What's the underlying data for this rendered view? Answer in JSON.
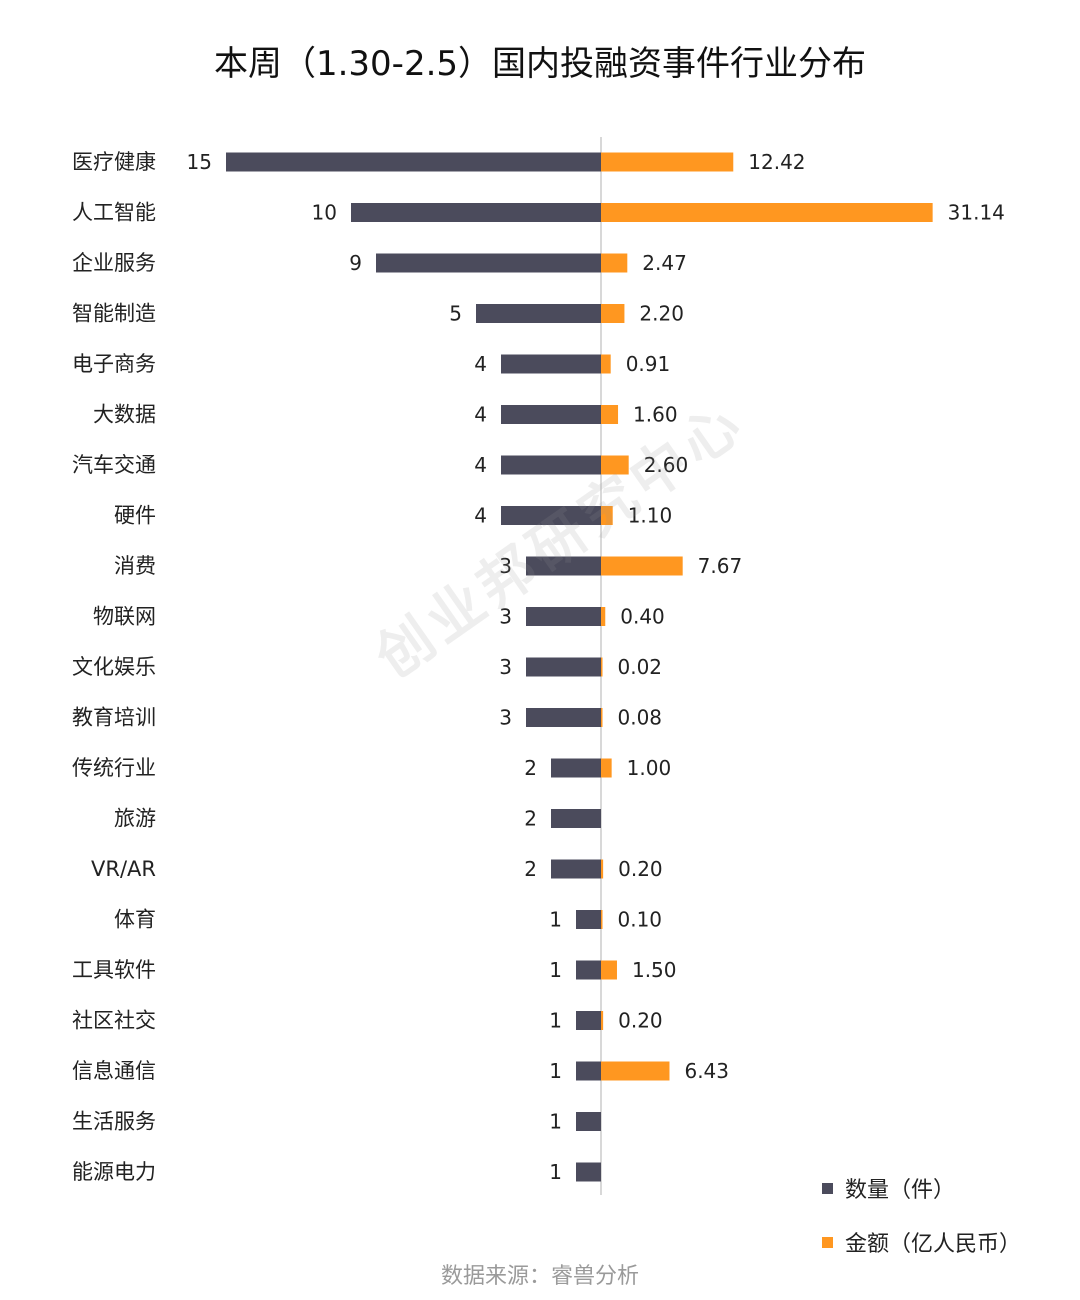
{
  "title": "本周（1.30-2.5）国内投融资事件行业分布",
  "source": "数据来源：睿兽分析",
  "watermark": "创业邦研究中心",
  "colors": {
    "count_bar": "#4b4b5c",
    "amount_bar": "#ff9720",
    "axis": "#cccccc"
  },
  "legend": {
    "count": "数量（件）",
    "amount": "金额（亿人民币）"
  },
  "chart_data": {
    "type": "bar",
    "orientation": "horizontal-diverging",
    "title": "本周（1.30-2.5）国内投融资事件行业分布",
    "categories": [
      "医疗健康",
      "人工智能",
      "企业服务",
      "智能制造",
      "电子商务",
      "大数据",
      "汽车交通",
      "硬件",
      "消费",
      "物联网",
      "文化娱乐",
      "教育培训",
      "传统行业",
      "旅游",
      "VR/AR",
      "体育",
      "工具软件",
      "社区社交",
      "信息通信",
      "生活服务",
      "能源电力"
    ],
    "series": [
      {
        "name": "数量（件）",
        "direction": "left",
        "values": [
          15,
          10,
          9,
          5,
          4,
          4,
          4,
          4,
          3,
          3,
          3,
          3,
          2,
          2,
          2,
          1,
          1,
          1,
          1,
          1,
          1
        ],
        "labels": [
          "15",
          "10",
          "9",
          "5",
          "4",
          "4",
          "4",
          "4",
          "3",
          "3",
          "3",
          "3",
          "2",
          "2",
          "2",
          "1",
          "1",
          "1",
          "1",
          "1",
          "1"
        ]
      },
      {
        "name": "金额（亿人民币）",
        "direction": "right",
        "values": [
          12.42,
          31.14,
          2.47,
          2.2,
          0.91,
          1.6,
          2.6,
          1.1,
          7.67,
          0.4,
          0.02,
          0.08,
          1.0,
          null,
          0.2,
          0.1,
          1.5,
          0.2,
          6.43,
          null,
          null
        ],
        "labels": [
          "12.42",
          "31.14",
          "2.47",
          "2.20",
          "0.91",
          "1.60",
          "2.60",
          "1.10",
          "7.67",
          "0.40",
          "0.02",
          "0.08",
          "1.00",
          null,
          "0.20",
          "0.10",
          "1.50",
          "0.20",
          "6.43",
          null,
          null
        ]
      }
    ],
    "grid": false,
    "legend_position": "bottom-right"
  }
}
